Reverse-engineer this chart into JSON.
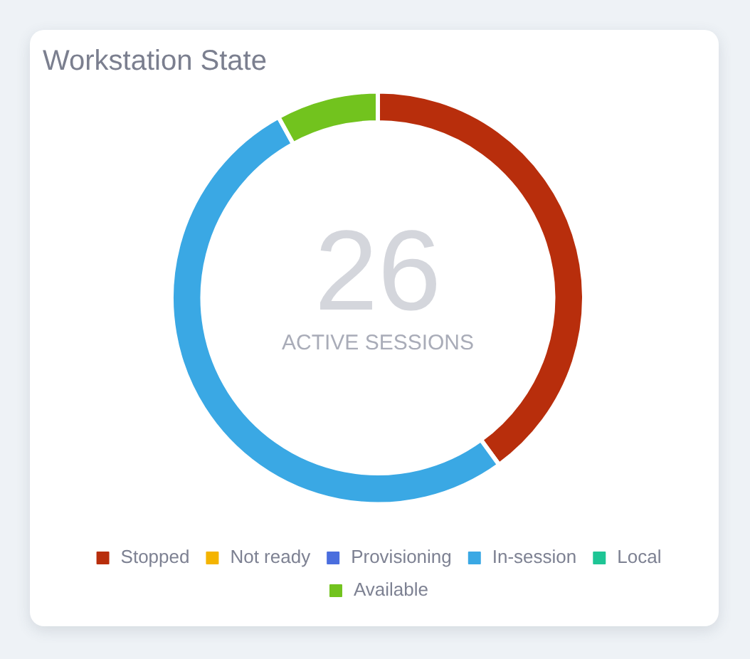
{
  "chart_data": {
    "type": "donut",
    "title": "Workstation State",
    "categories": [
      "Stopped",
      "Not ready",
      "Provisioning",
      "In-session",
      "Local",
      "Available"
    ],
    "values": [
      40,
      0,
      0,
      52,
      0,
      8
    ],
    "colors": [
      "#b82e0c",
      "#f4b400",
      "#4a6ede",
      "#3aa8e4",
      "#1ec595",
      "#72c31e"
    ],
    "legend": "bottom",
    "annotations": [
      "26",
      "ACTIVE SESSIONS"
    ]
  }
}
